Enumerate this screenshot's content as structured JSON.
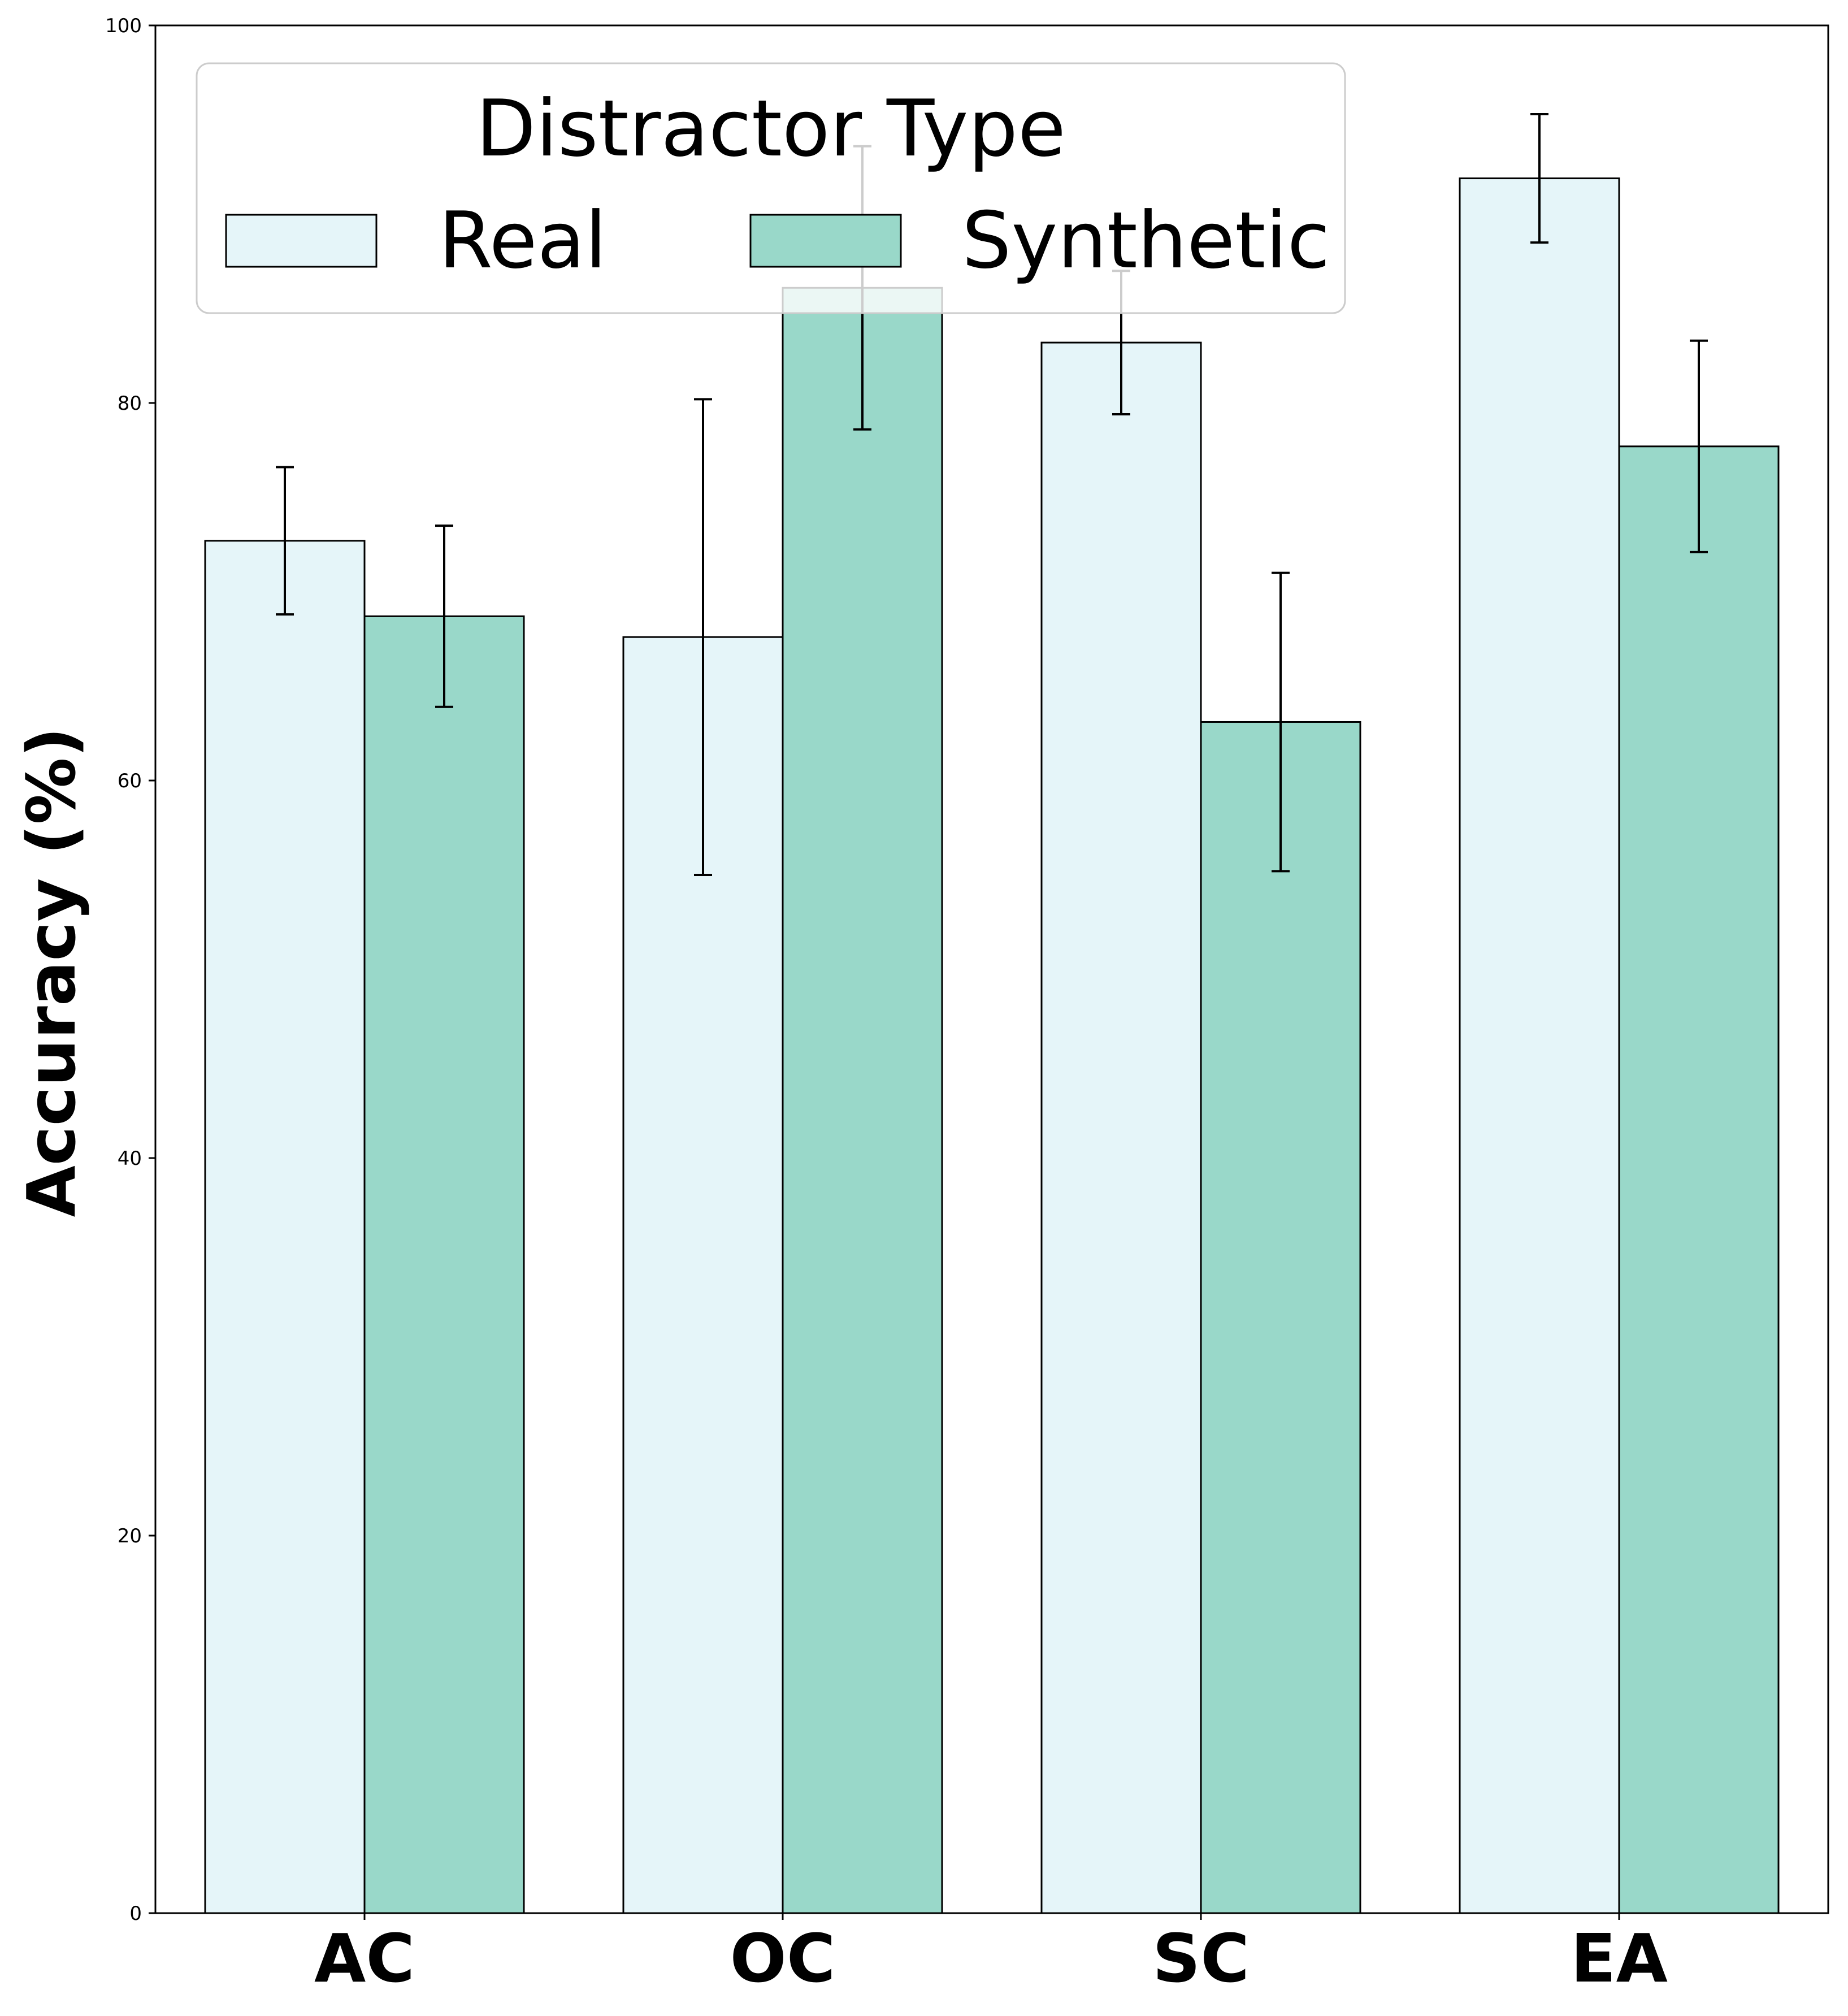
{
  "chart_data": {
    "type": "bar",
    "title": "",
    "xlabel": "",
    "ylabel": "Accuracy (%)",
    "ylim": [
      0,
      100
    ],
    "yticks": [
      0,
      20,
      40,
      60,
      80,
      100
    ],
    "categories": [
      "AC",
      "OC",
      "SC",
      "EA"
    ],
    "series": [
      {
        "name": "Real",
        "color": "#e5f5f9",
        "values": [
          72.7,
          67.6,
          83.2,
          91.9
        ],
        "errors": [
          3.9,
          12.6,
          3.8,
          3.4
        ]
      },
      {
        "name": "Synthetic",
        "color": "#99d8c9",
        "values": [
          68.7,
          86.1,
          63.1,
          77.7
        ],
        "errors": [
          4.8,
          7.5,
          7.9,
          5.6
        ]
      }
    ],
    "legend": {
      "title": "Distractor Type",
      "position": "upper-left"
    },
    "grid": false
  }
}
